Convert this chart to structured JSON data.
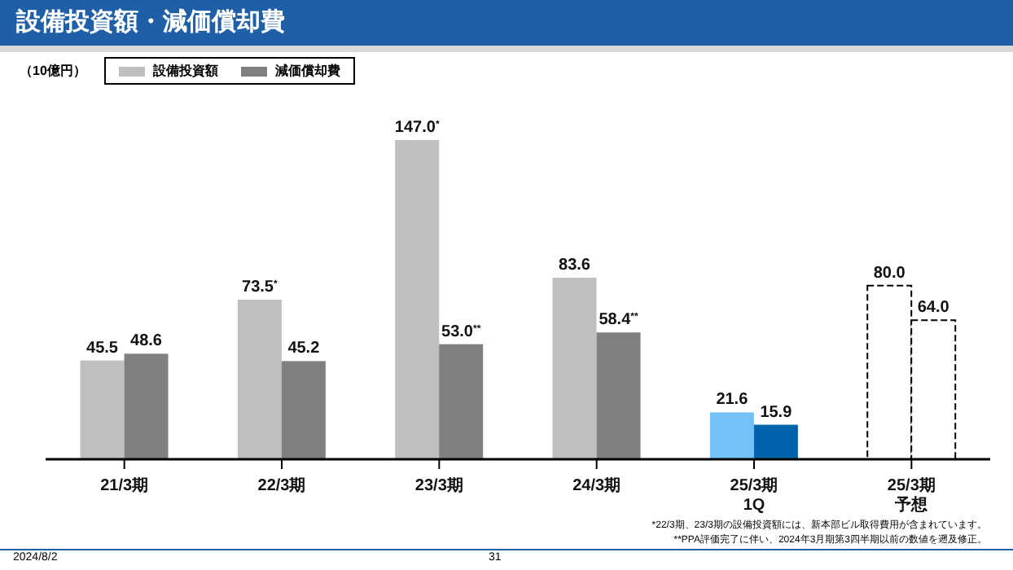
{
  "chart_data": {
    "type": "bar",
    "title": "設備投資額・減価償却費",
    "categories": [
      "21/3期",
      "22/3期",
      "23/3期",
      "24/3期",
      "25/3期\n1Q",
      "25/3期予想"
    ],
    "series": [
      {
        "name": "設備投資額",
        "color": "#bfbfbf",
        "colors": [
          "#bfbfbf",
          "#bfbfbf",
          "#bfbfbf",
          "#bfbfbf",
          "#75c1f7",
          "#ffffff"
        ],
        "values": [
          45.5,
          73.5,
          147.0,
          83.6,
          21.6,
          80.0
        ],
        "value_labels": [
          "45.5",
          "73.5$^{*}$",
          "147.0$^{*}$",
          "83.6",
          "21.6",
          "80.0"
        ]
      },
      {
        "name": "減価償却費",
        "color": "#808080",
        "colors": [
          "#808080",
          "#808080",
          "#808080",
          "#808080",
          "#0063ac",
          "#ffffff"
        ],
        "values": [
          48.6,
          45.2,
          53.0,
          58.4,
          15.9,
          64.0
        ],
        "value_labels": [
          "48.6",
          "45.2",
          "53.0$^{**}$",
          "58.4$^{**}$",
          "15.9",
          "64.0"
        ]
      }
    ],
    "legend": "top left",
    "grid": false,
    "annotations": [
      "（10億円）",
      "*22/3期、23/3期の設備投資額には、新本部ビル取得費用が含まれています。",
      "**PPA評価完了に伴い、2024年3月期第3四半期以前の数値を遡及修正。",
      "2024/8/2",
      "31"
    ]
  }
}
